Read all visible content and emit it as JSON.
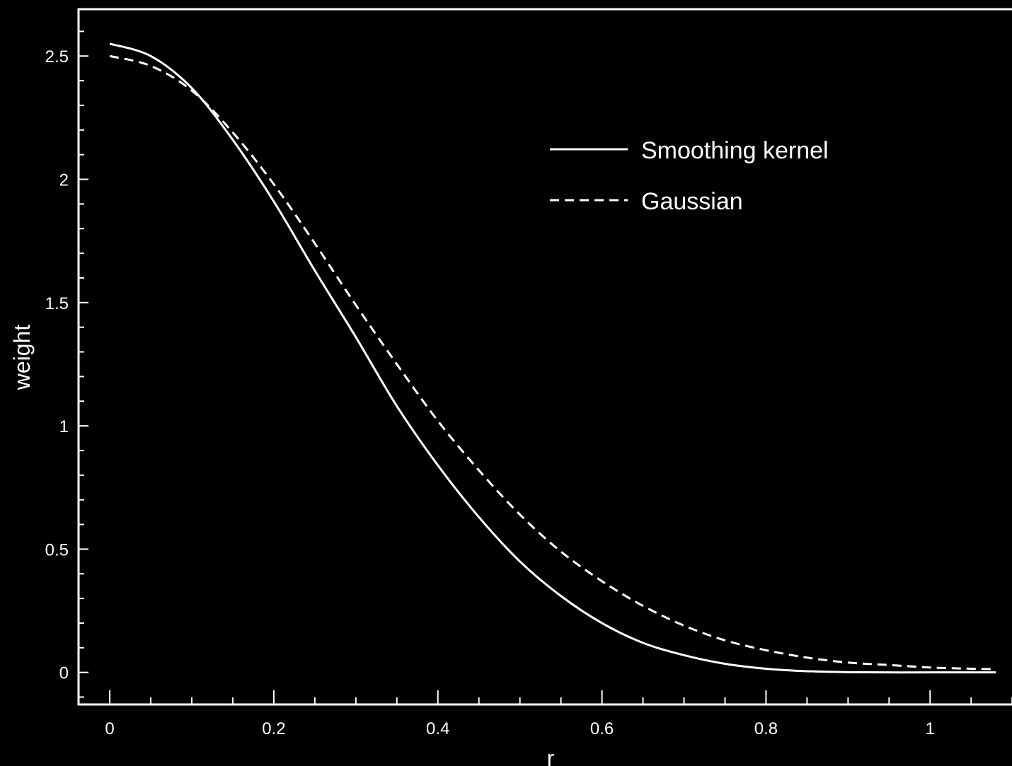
{
  "colors": {
    "background": "#000000",
    "foreground": "#ffffff"
  },
  "chart_data": {
    "type": "line",
    "title": "",
    "xlabel": "r",
    "ylabel": "weight",
    "xlim": [
      -0.038,
      1.105
    ],
    "ylim": [
      -0.13,
      2.69
    ],
    "x_ticks": [
      0,
      0.2,
      0.4,
      0.6,
      0.8,
      1
    ],
    "x_tick_labels": [
      "0",
      "0.2",
      "0.4",
      "0.6",
      "0.8",
      "1"
    ],
    "x_minor_step": 0.05,
    "y_ticks": [
      0,
      0.5,
      1,
      1.5,
      2,
      2.5
    ],
    "y_tick_labels": [
      "0",
      "0.5",
      "1",
      "1.5",
      "2",
      "2.5"
    ],
    "y_minor_step": 0.1,
    "grid": false,
    "legend_position": "top-right",
    "series": [
      {
        "name": "Smoothing kernel",
        "style": "solid",
        "x": [
          0,
          0.05,
          0.1,
          0.15,
          0.2,
          0.25,
          0.3,
          0.35,
          0.4,
          0.45,
          0.5,
          0.55,
          0.6,
          0.65,
          0.7,
          0.75,
          0.8,
          0.85,
          0.9,
          0.95,
          1.0,
          1.05,
          1.08
        ],
        "y": [
          2.55,
          2.5,
          2.37,
          2.16,
          1.91,
          1.63,
          1.36,
          1.08,
          0.84,
          0.63,
          0.45,
          0.31,
          0.2,
          0.12,
          0.07,
          0.035,
          0.015,
          0.005,
          0.001,
          0,
          0,
          0,
          0
        ]
      },
      {
        "name": "Gaussian",
        "style": "dashed",
        "x": [
          0,
          0.05,
          0.1,
          0.15,
          0.2,
          0.25,
          0.3,
          0.35,
          0.4,
          0.45,
          0.5,
          0.55,
          0.6,
          0.65,
          0.7,
          0.75,
          0.8,
          0.85,
          0.9,
          0.95,
          1.0,
          1.05,
          1.08
        ],
        "y": [
          2.5,
          2.46,
          2.36,
          2.19,
          1.98,
          1.74,
          1.49,
          1.25,
          1.02,
          0.82,
          0.64,
          0.49,
          0.37,
          0.27,
          0.19,
          0.13,
          0.09,
          0.06,
          0.04,
          0.03,
          0.02,
          0.015,
          0.013
        ]
      }
    ]
  }
}
